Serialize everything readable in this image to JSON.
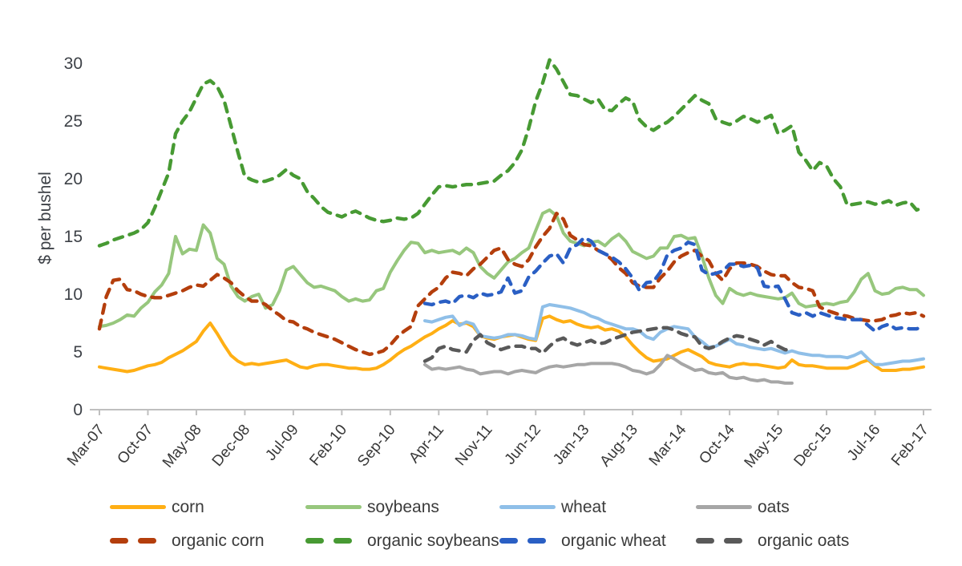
{
  "chart_data": {
    "type": "line",
    "title": "",
    "xlabel": "",
    "ylabel": "$ per bushel",
    "ylim": [
      0,
      30
    ],
    "yticks": [
      0,
      5,
      10,
      15,
      20,
      25,
      30
    ],
    "grid": false,
    "legend_position": "bottom",
    "x_tick_labels": [
      "Mar-07",
      "Oct-07",
      "May-08",
      "Dec-08",
      "Jul-09",
      "Feb-10",
      "Sep-10",
      "Apr-11",
      "Nov-11",
      "Jun-12",
      "Jan-13",
      "Aug-13",
      "Mar-14",
      "Oct-14",
      "May-15",
      "Dec-15",
      "Jul-16",
      "Feb-17"
    ],
    "x_tick_interval_months": 7,
    "months": [
      "Mar-07",
      "Apr-07",
      "May-07",
      "Jun-07",
      "Jul-07",
      "Aug-07",
      "Sep-07",
      "Oct-07",
      "Nov-07",
      "Dec-07",
      "Jan-08",
      "Feb-08",
      "Mar-08",
      "Apr-08",
      "May-08",
      "Jun-08",
      "Jul-08",
      "Aug-08",
      "Sep-08",
      "Oct-08",
      "Nov-08",
      "Dec-08",
      "Jan-09",
      "Feb-09",
      "Mar-09",
      "Apr-09",
      "May-09",
      "Jun-09",
      "Jul-09",
      "Aug-09",
      "Sep-09",
      "Oct-09",
      "Nov-09",
      "Dec-09",
      "Jan-10",
      "Feb-10",
      "Mar-10",
      "Apr-10",
      "May-10",
      "Jun-10",
      "Jul-10",
      "Aug-10",
      "Sep-10",
      "Oct-10",
      "Nov-10",
      "Dec-10",
      "Jan-11",
      "Feb-11",
      "Mar-11",
      "Apr-11",
      "May-11",
      "Jun-11",
      "Jul-11",
      "Aug-11",
      "Sep-11",
      "Oct-11",
      "Nov-11",
      "Dec-11",
      "Jan-12",
      "Feb-12",
      "Mar-12",
      "Apr-12",
      "May-12",
      "Jun-12",
      "Jul-12",
      "Aug-12",
      "Sep-12",
      "Oct-12",
      "Nov-12",
      "Dec-12",
      "Jan-13",
      "Feb-13",
      "Mar-13",
      "Apr-13",
      "May-13",
      "Jun-13",
      "Jul-13",
      "Aug-13",
      "Sep-13",
      "Oct-13",
      "Nov-13",
      "Dec-13",
      "Jan-14",
      "Feb-14",
      "Mar-14",
      "Apr-14",
      "May-14",
      "Jun-14",
      "Jul-14",
      "Aug-14",
      "Sep-14",
      "Oct-14",
      "Nov-14",
      "Dec-14",
      "Jan-15",
      "Feb-15",
      "Mar-15",
      "Apr-15",
      "May-15",
      "Jun-15",
      "Jul-15",
      "Aug-15",
      "Sep-15",
      "Oct-15",
      "Nov-15",
      "Dec-15",
      "Jan-16",
      "Feb-16",
      "Mar-16",
      "Apr-16",
      "May-16",
      "Jun-16",
      "Jul-16",
      "Aug-16",
      "Sep-16",
      "Oct-16",
      "Nov-16",
      "Dec-16",
      "Jan-17",
      "Feb-17"
    ],
    "series": [
      {
        "name": "corn",
        "color": "#FFAF14",
        "dashed": false,
        "values": [
          3.7,
          3.6,
          3.5,
          3.4,
          3.3,
          3.4,
          3.6,
          3.8,
          3.9,
          4.1,
          4.5,
          4.8,
          5.1,
          5.5,
          5.9,
          6.8,
          7.5,
          6.6,
          5.6,
          4.7,
          4.2,
          3.9,
          4.0,
          3.9,
          4.0,
          4.1,
          4.2,
          4.3,
          4.0,
          3.7,
          3.6,
          3.8,
          3.9,
          3.9,
          3.8,
          3.7,
          3.6,
          3.6,
          3.5,
          3.5,
          3.6,
          3.9,
          4.3,
          4.8,
          5.2,
          5.5,
          5.9,
          6.3,
          6.6,
          7.0,
          7.3,
          7.7,
          7.4,
          7.5,
          7.2,
          6.4,
          6.2,
          6.1,
          6.3,
          6.4,
          6.5,
          6.3,
          6.1,
          6.0,
          7.9,
          8.1,
          7.8,
          7.6,
          7.7,
          7.4,
          7.2,
          7.1,
          7.2,
          6.9,
          7.0,
          6.8,
          6.3,
          5.6,
          5.0,
          4.5,
          4.2,
          4.3,
          4.4,
          4.7,
          5.0,
          5.2,
          4.9,
          4.6,
          4.1,
          3.9,
          3.8,
          3.7,
          3.9,
          4.0,
          3.9,
          3.9,
          3.8,
          3.7,
          3.6,
          3.7,
          4.3,
          3.9,
          3.8,
          3.8,
          3.7,
          3.6,
          3.6,
          3.6,
          3.6,
          3.8,
          4.1,
          4.3,
          3.8,
          3.4,
          3.4,
          3.4,
          3.5,
          3.5,
          3.6,
          3.7
        ]
      },
      {
        "name": "soybeans",
        "color": "#97C77D",
        "dashed": false,
        "values": [
          7.2,
          7.3,
          7.5,
          7.8,
          8.2,
          8.1,
          8.8,
          9.3,
          10.2,
          10.8,
          11.8,
          15.0,
          13.5,
          13.9,
          13.8,
          16.0,
          15.3,
          13.1,
          12.6,
          10.7,
          9.8,
          9.4,
          9.8,
          10.0,
          8.8,
          9.1,
          10.3,
          12.1,
          12.4,
          11.7,
          11.0,
          10.6,
          10.7,
          10.5,
          10.3,
          9.8,
          9.4,
          9.6,
          9.4,
          9.5,
          10.3,
          10.5,
          11.9,
          12.9,
          13.8,
          14.5,
          14.4,
          13.6,
          13.8,
          13.6,
          13.7,
          13.8,
          13.5,
          14.0,
          13.6,
          12.4,
          11.8,
          11.4,
          12.1,
          12.8,
          13.1,
          13.6,
          14.0,
          15.5,
          17.0,
          17.3,
          16.8,
          15.3,
          14.6,
          14.4,
          14.2,
          14.5,
          14.6,
          14.2,
          14.8,
          15.2,
          14.6,
          13.7,
          13.4,
          13.1,
          13.3,
          14.0,
          14.0,
          15.0,
          15.1,
          14.8,
          14.9,
          13.3,
          11.4,
          9.9,
          9.2,
          10.5,
          10.1,
          9.9,
          10.1,
          9.9,
          9.8,
          9.7,
          9.6,
          9.7,
          10.1,
          9.2,
          8.9,
          9.0,
          9.1,
          9.2,
          9.1,
          9.3,
          9.4,
          10.2,
          11.3,
          11.8,
          10.3,
          10.0,
          10.1,
          10.5,
          10.6,
          10.4,
          10.4,
          9.9
        ]
      },
      {
        "name": "wheat",
        "color": "#8FBFE8",
        "dashed": false,
        "values": [
          null,
          null,
          null,
          null,
          null,
          null,
          null,
          null,
          null,
          null,
          null,
          null,
          null,
          null,
          null,
          null,
          null,
          null,
          null,
          null,
          null,
          null,
          null,
          null,
          null,
          null,
          null,
          null,
          null,
          null,
          null,
          null,
          null,
          null,
          null,
          null,
          null,
          null,
          null,
          null,
          null,
          null,
          null,
          null,
          null,
          null,
          null,
          7.7,
          7.6,
          7.8,
          8.0,
          8.1,
          7.3,
          7.6,
          7.4,
          6.4,
          6.3,
          6.2,
          6.3,
          6.5,
          6.5,
          6.4,
          6.2,
          6.1,
          8.9,
          9.1,
          9.0,
          8.9,
          8.8,
          8.6,
          8.4,
          8.1,
          7.9,
          7.6,
          7.4,
          7.2,
          7.0,
          7.0,
          6.8,
          6.3,
          6.1,
          6.7,
          7.0,
          7.2,
          7.1,
          7.0,
          6.3,
          5.9,
          5.4,
          5.5,
          5.8,
          6.1,
          5.7,
          5.6,
          5.4,
          5.3,
          5.2,
          5.3,
          5.1,
          4.9,
          5.1,
          4.9,
          4.8,
          4.7,
          4.7,
          4.6,
          4.6,
          4.6,
          4.5,
          4.7,
          5.0,
          4.4,
          3.9,
          3.9,
          4.0,
          4.1,
          4.2,
          4.2,
          4.3,
          4.4
        ]
      },
      {
        "name": "oats",
        "color": "#A6A6A6",
        "dashed": false,
        "values": [
          null,
          null,
          null,
          null,
          null,
          null,
          null,
          null,
          null,
          null,
          null,
          null,
          null,
          null,
          null,
          null,
          null,
          null,
          null,
          null,
          null,
          null,
          null,
          null,
          null,
          null,
          null,
          null,
          null,
          null,
          null,
          null,
          null,
          null,
          null,
          null,
          null,
          null,
          null,
          null,
          null,
          null,
          null,
          null,
          null,
          null,
          null,
          3.9,
          3.5,
          3.6,
          3.5,
          3.6,
          3.7,
          3.5,
          3.4,
          3.1,
          3.2,
          3.3,
          3.3,
          3.1,
          3.3,
          3.4,
          3.3,
          3.2,
          3.5,
          3.7,
          3.8,
          3.7,
          3.8,
          3.9,
          3.9,
          4.0,
          4.0,
          4.0,
          4.0,
          3.9,
          3.7,
          3.4,
          3.3,
          3.1,
          3.3,
          3.9,
          4.7,
          4.4,
          4.0,
          3.7,
          3.4,
          3.5,
          3.2,
          3.1,
          3.2,
          2.8,
          2.7,
          2.8,
          2.6,
          2.5,
          2.6,
          2.4,
          2.4,
          2.3,
          2.3,
          null,
          null,
          null,
          null,
          null,
          null,
          null,
          null,
          null,
          null,
          null,
          null,
          null,
          null,
          null,
          null,
          null,
          null,
          null
        ]
      },
      {
        "name": "organic corn",
        "color": "#B43E0C",
        "dashed": true,
        "values": [
          7.0,
          9.8,
          11.2,
          11.3,
          10.4,
          10.3,
          10.0,
          9.8,
          9.7,
          9.7,
          9.9,
          10.1,
          10.3,
          10.6,
          10.8,
          10.7,
          11.2,
          11.7,
          11.4,
          11.0,
          10.3,
          9.8,
          9.4,
          9.4,
          9.1,
          8.6,
          8.2,
          7.7,
          7.6,
          7.2,
          7.0,
          6.7,
          6.5,
          6.3,
          6.1,
          5.8,
          5.5,
          5.2,
          5.0,
          4.8,
          4.9,
          5.1,
          5.6,
          6.3,
          6.8,
          7.2,
          9.0,
          9.6,
          10.2,
          10.6,
          11.4,
          11.9,
          11.8,
          11.6,
          12.2,
          12.6,
          13.2,
          13.8,
          14.0,
          13.0,
          12.6,
          12.4,
          13.0,
          14.1,
          15.0,
          15.7,
          17.0,
          16.5,
          15.1,
          14.7,
          14.3,
          14.2,
          13.8,
          13.5,
          13.0,
          12.3,
          11.8,
          11.0,
          10.7,
          10.6,
          10.6,
          11.4,
          12.0,
          12.8,
          13.3,
          13.6,
          13.8,
          13.3,
          12.9,
          11.8,
          11.2,
          12.2,
          12.7,
          12.7,
          12.6,
          12.4,
          12.0,
          11.7,
          11.6,
          11.6,
          11.0,
          10.6,
          10.5,
          10.3,
          8.9,
          8.6,
          8.4,
          8.2,
          8.1,
          7.9,
          7.8,
          7.7,
          7.7,
          7.8,
          8.1,
          8.2,
          8.4,
          8.3,
          8.4,
          8.1
        ]
      },
      {
        "name": "organic soybeans",
        "color": "#479A33",
        "dashed": true,
        "values": [
          14.2,
          14.4,
          14.7,
          14.9,
          15.1,
          15.3,
          15.6,
          16.2,
          17.5,
          19.0,
          20.5,
          23.9,
          25.0,
          25.8,
          27.0,
          28.2,
          28.5,
          28.0,
          26.8,
          24.6,
          22.3,
          20.2,
          19.9,
          19.7,
          19.8,
          20.0,
          20.3,
          20.8,
          20.3,
          20.0,
          18.9,
          18.3,
          17.6,
          17.1,
          16.9,
          16.7,
          17.0,
          17.2,
          16.9,
          16.6,
          16.4,
          16.3,
          16.4,
          16.6,
          16.5,
          16.6,
          17.0,
          17.8,
          18.6,
          19.3,
          19.4,
          19.3,
          19.4,
          19.5,
          19.5,
          19.6,
          19.7,
          19.8,
          20.3,
          20.7,
          21.4,
          22.5,
          24.4,
          26.7,
          28.3,
          30.3,
          29.5,
          28.4,
          27.3,
          27.2,
          26.9,
          26.6,
          26.9,
          26.0,
          25.9,
          26.5,
          27.0,
          26.7,
          25.1,
          24.5,
          24.2,
          24.6,
          24.9,
          25.4,
          26.0,
          26.6,
          27.2,
          26.8,
          26.5,
          25.2,
          24.9,
          24.7,
          25.0,
          25.4,
          25.2,
          24.9,
          25.2,
          25.5,
          23.9,
          24.2,
          24.6,
          22.3,
          21.6,
          20.7,
          21.4,
          21.1,
          20.0,
          19.3,
          17.7,
          17.8,
          17.9,
          18.0,
          17.8,
          17.9,
          18.1,
          17.7,
          17.9,
          18.0,
          17.3,
          17.5
        ]
      },
      {
        "name": "organic wheat",
        "color": "#2A5FC4",
        "dashed": true,
        "values": [
          null,
          null,
          null,
          null,
          null,
          null,
          null,
          null,
          null,
          null,
          null,
          null,
          null,
          null,
          null,
          null,
          null,
          null,
          null,
          null,
          null,
          null,
          null,
          null,
          null,
          null,
          null,
          null,
          null,
          null,
          null,
          null,
          null,
          null,
          null,
          null,
          null,
          null,
          null,
          null,
          null,
          null,
          null,
          null,
          null,
          null,
          null,
          9.2,
          9.1,
          9.3,
          9.4,
          9.2,
          9.8,
          9.9,
          9.7,
          10.1,
          9.9,
          10.0,
          10.2,
          11.4,
          10.1,
          10.3,
          11.5,
          12.0,
          12.7,
          13.3,
          13.5,
          12.7,
          14.0,
          14.3,
          14.9,
          14.6,
          13.8,
          13.5,
          13.2,
          12.8,
          12.2,
          11.4,
          10.3,
          11.0,
          11.1,
          11.9,
          13.4,
          13.8,
          14.0,
          14.5,
          14.3,
          12.1,
          11.7,
          11.8,
          12.0,
          12.6,
          12.6,
          12.4,
          12.5,
          12.3,
          10.7,
          10.6,
          10.7,
          9.6,
          8.4,
          8.2,
          8.4,
          8.1,
          8.4,
          8.2,
          8.0,
          7.9,
          7.8,
          7.8,
          7.8,
          7.3,
          6.8,
          7.2,
          7.4,
          7.0,
          7.1,
          7.0,
          7.0,
          7.2
        ]
      },
      {
        "name": "organic oats",
        "color": "#595959",
        "dashed": true,
        "values": [
          null,
          null,
          null,
          null,
          null,
          null,
          null,
          null,
          null,
          null,
          null,
          null,
          null,
          null,
          null,
          null,
          null,
          null,
          null,
          null,
          null,
          null,
          null,
          null,
          null,
          null,
          null,
          null,
          null,
          null,
          null,
          null,
          null,
          null,
          null,
          null,
          null,
          null,
          null,
          null,
          null,
          null,
          null,
          null,
          null,
          null,
          null,
          4.2,
          4.5,
          5.3,
          5.5,
          5.2,
          5.1,
          5.0,
          6.0,
          6.5,
          5.8,
          5.5,
          5.2,
          5.4,
          5.5,
          5.5,
          5.3,
          5.3,
          4.9,
          5.5,
          6.0,
          6.2,
          5.8,
          5.6,
          5.8,
          6.0,
          5.7,
          5.8,
          6.1,
          6.3,
          6.5,
          6.7,
          6.8,
          6.9,
          7.0,
          7.1,
          7.1,
          6.9,
          6.6,
          6.4,
          6.3,
          5.5,
          5.3,
          5.5,
          5.9,
          6.2,
          6.4,
          6.3,
          6.1,
          5.9,
          5.6,
          5.9,
          5.5,
          5.2,
          5.1,
          null,
          null,
          null,
          null,
          null,
          null,
          null,
          null,
          null,
          null,
          null,
          null,
          null,
          null,
          null,
          null,
          null,
          null,
          null
        ]
      }
    ]
  },
  "style": {
    "axis_color": "#BFBFBF",
    "tick_text_color": "#3D4147",
    "x_label_color": "#383838",
    "legend_text_color": "#3B3B3B"
  }
}
